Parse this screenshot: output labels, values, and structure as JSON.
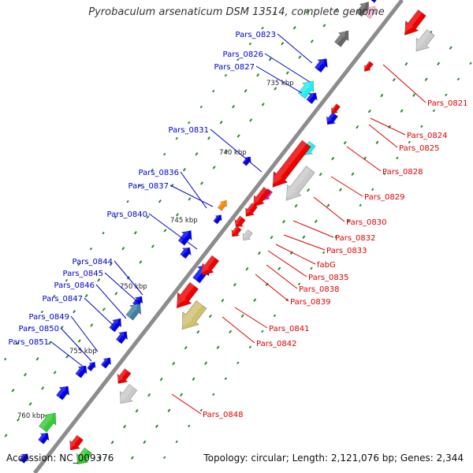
{
  "title": "Pyrobaculum arsenaticum DSM 13514, complete genome",
  "accession": "Accession: NC_009376",
  "summary": "Topology: circular; Length: 2,121,076 bp; Genes: 2,344",
  "colors": {
    "background": "#ffffff",
    "backbone": "#8c8c8c",
    "forward_label": "#0000cc",
    "reverse_label": "#dd0000",
    "tick": "#2a8a2a",
    "gene_blue": "#0000ee",
    "gene_red": "#ee0000",
    "gene_grey": "#c9c9c9",
    "gene_dark_grey": "#666666",
    "gene_cyan": "#22eeee",
    "gene_magenta": "#e020a0",
    "gene_orange": "#ff8800",
    "gene_green": "#33cc33",
    "gene_khaki": "#cfc070",
    "gene_teal": "#3f7fa0",
    "gene_pink": "#ffbbdd"
  },
  "scale_labels": [
    "735 kbp",
    "740 kbp",
    "745 kbp",
    "750 kbp",
    "755 kbp",
    "760 kbp"
  ],
  "forward_genes": [
    "Pars_0823",
    "Pars_0826",
    "Pars_0827",
    "Pars_0831",
    "Pars_0836",
    "Pars_0837",
    "Pars_0840",
    "Pars_0844",
    "Pars_0845",
    "Pars_0846",
    "Pars_0847",
    "Pars_0849",
    "Pars_0850",
    "Pars_0851"
  ],
  "reverse_genes": [
    "Pars_0821",
    "Pars_0824",
    "Pars_0825",
    "Pars_0828",
    "Pars_0829",
    "Pars_0830",
    "Pars_0832",
    "Pars_0833",
    "fabG",
    "Pars_0835",
    "Pars_0838",
    "Pars_0839",
    "Pars_0841",
    "Pars_0842",
    "Pars_0848"
  ]
}
